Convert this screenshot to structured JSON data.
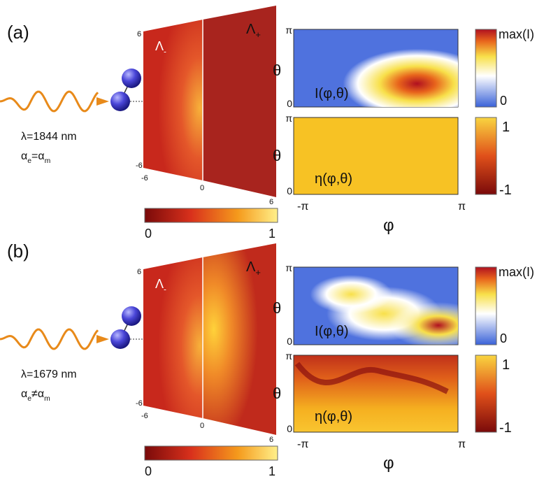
{
  "panels": [
    {
      "label": "(a)",
      "wavelength": "λ=1844 nm",
      "relation": [
        "α",
        "e",
        "=α",
        "m"
      ],
      "screen": {
        "left_label": [
          "Λ",
          "-"
        ],
        "right_label": [
          "Λ",
          "+"
        ],
        "ticks": {
          "top": "6",
          "bottom": "-6",
          "left": "-6",
          "center": "0",
          "right": "6"
        }
      },
      "colorbar": {
        "min": "0",
        "max": "1"
      },
      "intensity": {
        "label": "I(φ,θ)",
        "y_top": "π",
        "y_bottom": "0",
        "y_axis": "θ",
        "colorbar_max": "max(I)",
        "colorbar_min": "0"
      },
      "helicity": {
        "label": "η(φ,θ)",
        "y_top": "π",
        "y_bottom": "0",
        "y_axis": "θ",
        "colorbar_max": "1",
        "colorbar_min": "-1"
      },
      "x_axis": {
        "left": "-π",
        "right": "π",
        "label": "φ"
      }
    },
    {
      "label": "(b)",
      "wavelength": "λ=1679 nm",
      "relation": [
        "α",
        "e",
        "≠α",
        "m"
      ],
      "screen": {
        "left_label": [
          "Λ",
          "-"
        ],
        "right_label": [
          "Λ",
          "+"
        ],
        "ticks": {
          "top": "6",
          "bottom": "-6",
          "left": "-6",
          "center": "0",
          "right": "6"
        }
      },
      "colorbar": {
        "min": "0",
        "max": "1"
      },
      "intensity": {
        "label": "I(φ,θ)",
        "y_top": "π",
        "y_bottom": "0",
        "y_axis": "θ",
        "colorbar_max": "max(I)",
        "colorbar_min": "0"
      },
      "helicity": {
        "label": "η(φ,θ)",
        "y_top": "π",
        "y_bottom": "0",
        "y_axis": "θ",
        "colorbar_max": "1",
        "colorbar_min": "-1"
      },
      "x_axis": {
        "left": "-π",
        "right": "π",
        "label": "φ"
      }
    }
  ]
}
